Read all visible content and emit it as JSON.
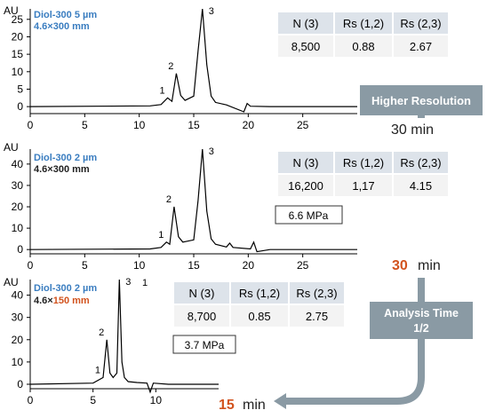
{
  "colors": {
    "blue": "#3a7dc0",
    "orange": "#d2531e",
    "arrow": "#8a9aa4",
    "header": "#dde3ea",
    "table": "#f3f3f3"
  },
  "chart_data": [
    {
      "type": "line",
      "y_unit": "AU",
      "column": "Diol-300  5 µm",
      "dims": "4.6×300 mm",
      "x_ticks": [
        0,
        5,
        10,
        15,
        20,
        25
      ],
      "y_ticks": [
        0,
        5,
        10,
        15,
        20,
        25
      ],
      "xlim": [
        0,
        30
      ],
      "ylim": [
        -2,
        28
      ],
      "series": [
        {
          "x": [
            0,
            11,
            12,
            12.6,
            13,
            13.4,
            13.8,
            14.2,
            15.0,
            15.4,
            15.8,
            16.2,
            16.6,
            17.0,
            18.0,
            19.6,
            19.9,
            20.2,
            22,
            30
          ],
          "y": [
            0,
            0.2,
            0.6,
            2.5,
            1.5,
            9.5,
            3.2,
            1.8,
            3.0,
            16,
            28,
            12,
            3.0,
            1.2,
            0.5,
            -1.5,
            0.9,
            0.1,
            0,
            0
          ]
        }
      ],
      "peak_labels": [
        {
          "label": "1",
          "x": 12.6,
          "y": 2.5
        },
        {
          "label": "2",
          "x": 13.4,
          "y": 9.5
        },
        {
          "label": "3",
          "x": 15.8,
          "y": 28
        }
      ],
      "end_time": "30 min",
      "table": {
        "headers": [
          "N (3)",
          "Rs (1,2)",
          "Rs (2,3)"
        ],
        "values": [
          "8,500",
          "0.88",
          "2.67"
        ]
      }
    },
    {
      "type": "line",
      "y_unit": "AU",
      "column": "Diol-300  2 µm",
      "dims": "4.6×300 mm",
      "x_ticks": [
        0,
        5,
        10,
        15,
        20,
        25
      ],
      "y_ticks": [
        0,
        10,
        20,
        30,
        40
      ],
      "xlim": [
        0,
        30
      ],
      "ylim": [
        -2,
        47
      ],
      "series": [
        {
          "x": [
            0,
            11,
            12,
            12.5,
            12.8,
            13.2,
            13.6,
            14.0,
            15.0,
            15.4,
            15.8,
            16.2,
            16.6,
            17.0,
            18.0,
            18.3,
            18.6,
            20.2,
            20.5,
            20.8,
            22,
            30
          ],
          "y": [
            0,
            0.3,
            1.0,
            3.5,
            2.5,
            20,
            6,
            3.5,
            4.5,
            23,
            47,
            18,
            5,
            2.5,
            1.2,
            3,
            1,
            0.3,
            3.5,
            -1,
            0,
            0
          ]
        }
      ],
      "peak_labels": [
        {
          "label": "1",
          "x": 12.5,
          "y": 3.5
        },
        {
          "label": "2",
          "x": 13.2,
          "y": 20
        },
        {
          "label": "3",
          "x": 15.8,
          "y": 47
        }
      ],
      "end_time": "30",
      "end_unit": "min",
      "pressure": "6.6 MPa",
      "table": {
        "headers": [
          "N (3)",
          "Rs (1,2)",
          "Rs (2,3)"
        ],
        "values": [
          "16,200",
          "1,17",
          "4.15"
        ]
      }
    },
    {
      "type": "line",
      "y_unit": "AU",
      "column": "Diol-300  2 µm",
      "dims_prefix": "4.6×",
      "dims_highlight": "150 mm",
      "x_ticks": [
        0,
        5,
        10
      ],
      "y_ticks": [
        0,
        10,
        20,
        30,
        40
      ],
      "xlim": [
        0,
        15
      ],
      "ylim": [
        -2,
        47
      ],
      "series": [
        {
          "x": [
            0,
            5,
            5.8,
            6.1,
            6.35,
            6.6,
            6.9,
            7.1,
            7.3,
            7.5,
            7.8,
            8.5,
            9.3,
            9.55,
            9.8,
            11,
            15
          ],
          "y": [
            0,
            0.5,
            3.0,
            20,
            5,
            3,
            5,
            47,
            10,
            3,
            1.2,
            0.8,
            0.5,
            -3.5,
            0.5,
            0,
            0
          ]
        }
      ],
      "peak_labels": [
        {
          "label": "1",
          "x": 5.8,
          "y": 3.0
        },
        {
          "label": "2",
          "x": 6.1,
          "y": 20
        },
        {
          "label": "3",
          "x": 7.1,
          "y": 47
        }
      ],
      "extra_label": "1",
      "end_time": "15",
      "end_unit": "min",
      "pressure": "3.7 MPa",
      "table": {
        "headers": [
          "N (3)",
          "Rs (1,2)",
          "Rs (2,3)"
        ],
        "values": [
          "8,700",
          "0.85",
          "2.75"
        ]
      }
    }
  ],
  "arrows": {
    "higher_resolution": "Higher Resolution",
    "analysis_time_line1": "Analysis Time",
    "analysis_time_line2": "1/2"
  }
}
